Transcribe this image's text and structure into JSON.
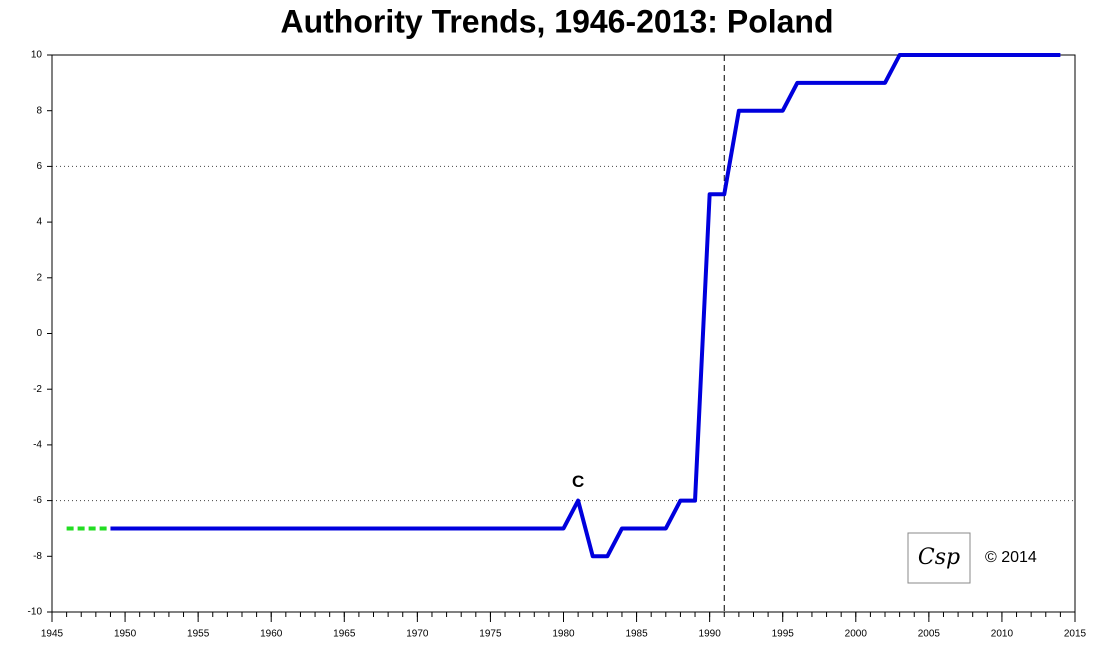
{
  "chart_data": {
    "type": "line",
    "title": "Authority Trends, 1946-2013: Poland",
    "series": [
      {
        "color": "#22dd22",
        "dashed": true,
        "x": [
          1946,
          1947,
          1948,
          1949
        ],
        "values": [
          -7,
          -7,
          -7,
          -7
        ]
      },
      {
        "color": "#0000dd",
        "dashed": false,
        "x": [
          1949,
          1980,
          1981,
          1982,
          1983,
          1984,
          1987,
          1988,
          1989,
          1990,
          1991,
          1992,
          1995,
          1996,
          2002,
          2003,
          2014
        ],
        "values": [
          -7,
          -7,
          -6,
          -8,
          -8,
          -7,
          -7,
          -6,
          -6,
          5,
          5,
          8,
          8,
          9,
          9,
          10,
          10
        ]
      }
    ],
    "xlim": [
      1945,
      2015
    ],
    "xticks": [
      1945,
      1950,
      1955,
      1960,
      1965,
      1970,
      1975,
      1980,
      1985,
      1990,
      1995,
      2000,
      2005,
      2010,
      2015
    ],
    "ylim": [
      -10,
      10
    ],
    "yticks": [
      -10,
      -8,
      -6,
      -4,
      -2,
      0,
      2,
      4,
      6,
      8,
      10
    ],
    "hlines": [
      6,
      -6
    ],
    "vline": 1991,
    "annotation": {
      "text": "C",
      "x": 1981,
      "y": -6
    },
    "logo": "Csp",
    "copyright": "© 2014"
  }
}
